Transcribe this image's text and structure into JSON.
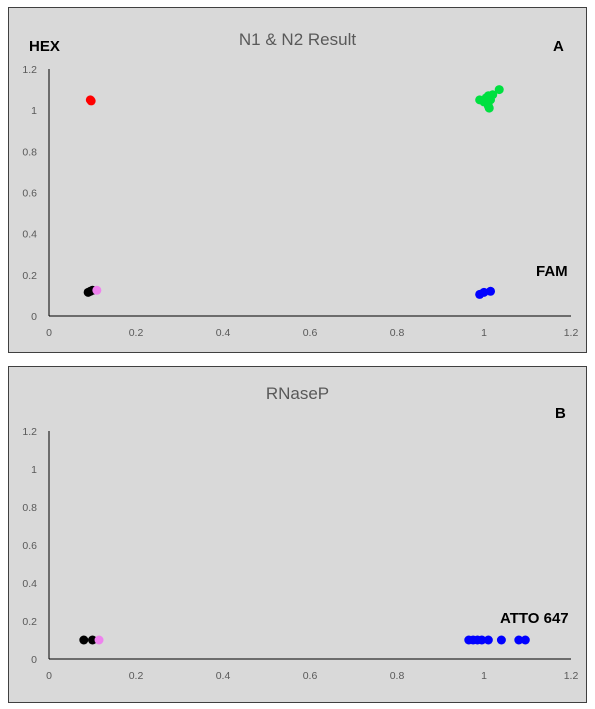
{
  "chart_data": [
    {
      "type": "scatter",
      "title": "N1 & N2 Result",
      "panel_label": "A",
      "annotations": [
        "HEX",
        "FAM"
      ],
      "xlim": [
        0,
        1.2
      ],
      "ylim": [
        0,
        1.2
      ],
      "x_ticks": [
        "0",
        "0.2",
        "0.4",
        "0.6",
        "0.8",
        "1",
        "1.2"
      ],
      "y_ticks": [
        "0",
        "0.2",
        "0.4",
        "0.6",
        "0.8",
        "1",
        "1.2"
      ],
      "grid": false,
      "series": [
        {
          "color": "#ff0000",
          "points": [
            [
              0.095,
              1.05
            ],
            [
              0.097,
              1.045
            ]
          ]
        },
        {
          "color": "#00e040",
          "points": [
            [
              0.99,
              1.05
            ],
            [
              1.0,
              1.04
            ],
            [
              1.005,
              1.06
            ],
            [
              1.01,
              1.02
            ],
            [
              1.01,
              1.07
            ],
            [
              1.015,
              1.05
            ],
            [
              1.02,
              1.075
            ],
            [
              1.035,
              1.1
            ],
            [
              1.012,
              1.01
            ]
          ]
        },
        {
          "color": "#000000",
          "points": [
            [
              0.09,
              0.115
            ],
            [
              0.095,
              0.12
            ],
            [
              0.1,
              0.125
            ]
          ]
        },
        {
          "color": "#ee82ee",
          "points": [
            [
              0.11,
              0.125
            ]
          ]
        },
        {
          "color": "#0000ff",
          "points": [
            [
              0.99,
              0.105
            ],
            [
              1.0,
              0.115
            ],
            [
              1.015,
              0.12
            ]
          ]
        }
      ]
    },
    {
      "type": "scatter",
      "title": "RNaseP",
      "panel_label": "B",
      "annotations": [
        "ATTO 647"
      ],
      "xlim": [
        0,
        1.2
      ],
      "ylim": [
        0,
        1.2
      ],
      "x_ticks": [
        "0",
        "0.2",
        "0.4",
        "0.6",
        "0.8",
        "1",
        "1.2"
      ],
      "y_ticks": [
        "0",
        "0.2",
        "0.4",
        "0.6",
        "0.8",
        "1",
        "1.2"
      ],
      "grid": false,
      "series": [
        {
          "color": "#000000",
          "points": [
            [
              0.08,
              0.1
            ],
            [
              0.1,
              0.1
            ]
          ]
        },
        {
          "color": "#ee82ee",
          "points": [
            [
              0.115,
              0.1
            ]
          ]
        },
        {
          "color": "#0000ff",
          "points": [
            [
              0.965,
              0.1
            ],
            [
              0.975,
              0.1
            ],
            [
              0.985,
              0.1
            ],
            [
              0.995,
              0.1
            ],
            [
              1.01,
              0.1
            ],
            [
              1.04,
              0.1
            ],
            [
              1.08,
              0.1
            ],
            [
              1.095,
              0.1
            ]
          ]
        }
      ]
    }
  ]
}
